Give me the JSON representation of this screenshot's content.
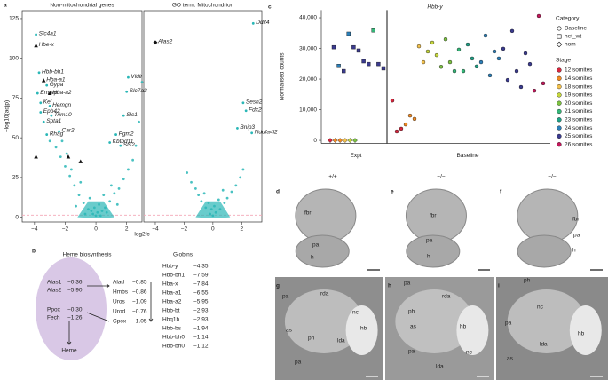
{
  "chart_data": [
    {
      "panel": "a",
      "type": "volcano",
      "title": "Non-mitochondrial genes",
      "y_label": "−log10(adjp)",
      "x_label": "log2fc",
      "xlim": [
        -4.8,
        3.0
      ],
      "ylim": [
        -3,
        130
      ],
      "xticks": [
        {
          "value": -4,
          "label": "−4"
        },
        {
          "value": -2,
          "label": "−2"
        },
        0,
        2
      ],
      "yticks": [
        0,
        25,
        50,
        75,
        100,
        125
      ],
      "threshold": 1.3,
      "points": {
        "color": "#2ab7b7",
        "x": [
          -0.2,
          0.1,
          0.3,
          -0.5,
          0.6,
          -0.8,
          0.9,
          -1.1,
          1.2,
          -1.4,
          1.5,
          -1.7,
          1.8,
          -2,
          2.1,
          -2.3,
          2.4,
          -2.6,
          -0.4,
          0.5,
          -1,
          1,
          -1.6,
          0.2,
          -0.1,
          0.7,
          -0.7,
          1.4,
          -1.3,
          2.6,
          3,
          2.8,
          -3,
          -2.2,
          -1.9,
          0,
          0.4,
          -0.3
        ],
        "y": [
          2,
          3,
          1,
          5,
          6,
          9,
          10,
          14,
          15,
          20,
          18,
          26,
          24,
          32,
          30,
          38,
          36,
          44,
          12,
          14,
          22,
          20,
          30,
          8,
          6,
          3,
          2,
          8,
          7,
          45,
          85,
          60,
          48,
          48,
          40,
          1,
          4,
          4
        ]
      },
      "genes": {
        "x": [
          -3.9,
          -3.9,
          -3.7,
          -3.4,
          -3.2,
          -3.8,
          -3.0,
          -3.6,
          -3.0,
          -3.6,
          -2.9,
          -3.4,
          -3.2,
          -2.4,
          2.1,
          2.0,
          1.8,
          1.3,
          0.9,
          1.6,
          -3.9,
          -1.8,
          -1.0
        ],
        "y": [
          115,
          108,
          91,
          86,
          83,
          78,
          78,
          72,
          70,
          66,
          64,
          60,
          52,
          54,
          88,
          79,
          64,
          52,
          47,
          45,
          38,
          38,
          35
        ],
        "labels": [
          "Slc4a1",
          "Hbe-x",
          "Hbb-bh1",
          "Hba-a1",
          "Gypa",
          "Ermap",
          "Hba-a2",
          "Kel",
          "Hemgn",
          "Epb42",
          "Trim10",
          "Spta1",
          "Rhag",
          "Car2",
          "Vldlr",
          "Slc7a3",
          "Slc1",
          "Pgm2",
          "Kbtbd11",
          "Sts2",
          null,
          null,
          null
        ],
        "label_colors": [
          "#e8574f",
          "#e8574f",
          "#e8574f",
          "#e8574f",
          "#e8574f",
          "#e8574f",
          "#e8574f",
          "#e8574f",
          "#e8574f",
          "#e8574f",
          "#e8574f",
          "#e8574f",
          "#e8574f",
          "#e8574f",
          "#222222",
          "#222222",
          "#222222",
          "#222222",
          "#222222",
          "#222222",
          "#222222",
          "#222222",
          "#222222"
        ],
        "markers": [
          "circle",
          "triangle",
          "circle",
          "triangle",
          "circle",
          "circle",
          "triangle",
          "circle",
          "circle",
          "circle",
          "circle",
          "circle",
          "circle",
          "circle",
          "circle",
          "circle",
          "circle",
          "circle",
          "circle",
          "circle",
          "triangle",
          "triangle",
          "triangle"
        ]
      }
    },
    {
      "type": "volcano",
      "title": "GO term: Mitochondrion",
      "xlim": [
        -4.8,
        3.4
      ],
      "ylim": [
        -3,
        130
      ],
      "xticks": [
        {
          "value": -4,
          "label": "−4"
        },
        {
          "value": -2,
          "label": "−2"
        },
        0,
        2
      ],
      "threshold": 1.3,
      "points": {
        "color": "#2ab7b7",
        "x": [
          -0.2,
          0.2,
          -0.5,
          0.5,
          -0.8,
          0.8,
          -1,
          1,
          -1.2,
          1.3,
          0,
          -0.3,
          0.4,
          -1.5,
          1.6,
          -0.6,
          0.7,
          -1.8,
          1.9,
          -0.1,
          0.1,
          2.1
        ],
        "y": [
          2,
          3,
          6,
          5,
          10,
          9,
          14,
          12,
          18,
          16,
          1,
          9,
          11,
          22,
          20,
          15,
          17,
          28,
          25,
          5,
          7,
          30
        ]
      },
      "genes": {
        "x": [
          2.8,
          -4.0,
          2.1,
          2.3,
          1.7,
          2.7
        ],
        "y": [
          122,
          110,
          72,
          67,
          56,
          53
        ],
        "labels": [
          "Ddit4",
          "Alas2",
          "Sesn2",
          "Fdx2",
          "Bnip3",
          "Ndufa4l2"
        ],
        "label_colors": [
          "#222222",
          "#e8574f",
          "#222222",
          "#222222",
          "#222222",
          "#222222"
        ],
        "markers": [
          "circle",
          "diamond",
          "circle",
          "circle",
          "circle",
          "circle"
        ]
      }
    },
    {
      "panel": "c",
      "type": "scatter",
      "title": "Hbb-y",
      "y_label": "Normalised counts",
      "categories": [
        "Expt",
        "Baseline"
      ],
      "ylim": [
        -1000,
        42500
      ],
      "yticks": [
        0,
        {
          "value": 10000,
          "label": "10,000"
        },
        {
          "value": 20000,
          "label": "20,000"
        },
        {
          "value": 30000,
          "label": "30,000"
        },
        {
          "value": 40000,
          "label": "40,000"
        }
      ],
      "category_title": "Category",
      "stage_title": "Stage",
      "stages": [
        {
          "name": "12 somites",
          "color": "#d7263d"
        },
        {
          "name": "14 somites",
          "color": "#f08a24"
        },
        {
          "name": "18 somites",
          "color": "#f2c14e"
        },
        {
          "name": "19 somites",
          "color": "#c5d63d"
        },
        {
          "name": "20 somites",
          "color": "#7cc242"
        },
        {
          "name": "21 somites",
          "color": "#35b779"
        },
        {
          "name": "23 somites",
          "color": "#1fa187"
        },
        {
          "name": "24 somites",
          "color": "#2c7fb8"
        },
        {
          "name": "25 somites",
          "color": "#3b3b8f"
        },
        {
          "name": "26 somites",
          "color": "#c2185b"
        }
      ],
      "series": [
        {
          "name": "Baseline",
          "marker": "circle",
          "group": "Baseline",
          "values": [
            13000,
            2900,
            3800,
            5200,
            8100,
            7000,
            30700,
            25500,
            29000,
            31900,
            27800,
            24000,
            33000,
            25500,
            22600,
            29600,
            22600,
            31300,
            26700,
            24100,
            25500,
            34200,
            21200,
            29000,
            26700,
            29900,
            19700,
            35700,
            22600,
            17400,
            28400,
            24900,
            16200,
            40600,
            18600
          ],
          "stage": [
            "12 somites",
            "12 somites",
            "12 somites",
            "14 somites",
            "14 somites",
            "14 somites",
            "18 somites",
            "18 somites",
            "19 somites",
            "19 somites",
            "19 somites",
            "20 somites",
            "20 somites",
            "20 somites",
            "21 somites",
            "21 somites",
            "21 somites",
            "23 somites",
            "23 somites",
            "23 somites",
            "24 somites",
            "24 somites",
            "24 somites",
            "24 somites",
            "24 somites",
            "25 somites",
            "25 somites",
            "25 somites",
            "25 somites",
            "25 somites",
            "25 somites",
            "25 somites",
            "26 somites",
            "26 somites",
            "26 somites"
          ]
        },
        {
          "name": "het_wt",
          "marker": "square",
          "group": "Expt",
          "values": [
            30400,
            24300,
            22600,
            34800,
            30400,
            29300,
            25800,
            24900,
            35900,
            24900,
            23500
          ],
          "stage": [
            "25 somites",
            "24 somites",
            "25 somites",
            "24 somites",
            "25 somites",
            "25 somites",
            "25 somites",
            "25 somites",
            "21 somites",
            "25 somites",
            "25 somites"
          ]
        },
        {
          "name": "hom",
          "marker": "diamond",
          "group": "Expt",
          "values": [
            0,
            0,
            0,
            0,
            0,
            0
          ],
          "stage": [
            "12 somites",
            "14 somites",
            "14 somites",
            "18 somites",
            "19 somites",
            "20 somites"
          ]
        }
      ]
    }
  ],
  "heme": {
    "panel": "b",
    "title": "Heme biosynthesis",
    "mito": [
      {
        "gene": "Alas1",
        "value": "−0.36"
      },
      {
        "gene": "Alas2",
        "value": "−5.90"
      },
      {
        "gene": "Ppox",
        "value": "−0.30"
      },
      {
        "gene": "Fech",
        "value": "−1.26"
      }
    ],
    "product": "Heme",
    "cytosol": [
      {
        "gene": "Alad",
        "value": "−0.85"
      },
      {
        "gene": "Hmbs",
        "value": "−0.86"
      },
      {
        "gene": "Uros",
        "value": "−1.09"
      },
      {
        "gene": "Urod",
        "value": "−0.76"
      },
      {
        "gene": "Cpox",
        "value": "−1.05"
      }
    ],
    "globins_title": "Globins",
    "globins": [
      {
        "gene": "Hbb-y",
        "value": "−4.35"
      },
      {
        "gene": "Hbb-bh1",
        "value": "−7.59"
      },
      {
        "gene": "Hba-x",
        "value": "−7.84"
      },
      {
        "gene": "Hba-a1",
        "value": "−6.55"
      },
      {
        "gene": "Hba-a2",
        "value": "−5.95"
      },
      {
        "gene": "Hbb-bt",
        "value": "−2.93"
      },
      {
        "gene": "Hbq1b",
        "value": "−2.93"
      },
      {
        "gene": "Hbb-bs",
        "value": "−1.94"
      },
      {
        "gene": "Hbb-bh0",
        "value": "−1.14"
      },
      {
        "gene": "Hbb-bh0",
        "value": "−1.12"
      }
    ]
  },
  "images": [
    {
      "panel": "d",
      "genotype": "+/+",
      "labels": [
        "fbr",
        "pa",
        "h"
      ]
    },
    {
      "panel": "e",
      "genotype": "−/−",
      "labels": [
        "fbr",
        "pa",
        "h"
      ]
    },
    {
      "panel": "f",
      "genotype": "−/−",
      "labels": [
        "fbr",
        "pa",
        "h"
      ]
    },
    {
      "panel": "g",
      "labels": [
        "pa",
        "rda",
        "nc",
        "hb",
        "as",
        "ph",
        "lda",
        "pa"
      ]
    },
    {
      "panel": "h",
      "labels": [
        "pa",
        "ph",
        "rda",
        "as",
        "hb",
        "nc",
        "lda",
        "pa"
      ]
    },
    {
      "panel": "i",
      "labels": [
        "ph",
        "nc",
        "pa",
        "hb",
        "lda",
        "as"
      ]
    }
  ]
}
